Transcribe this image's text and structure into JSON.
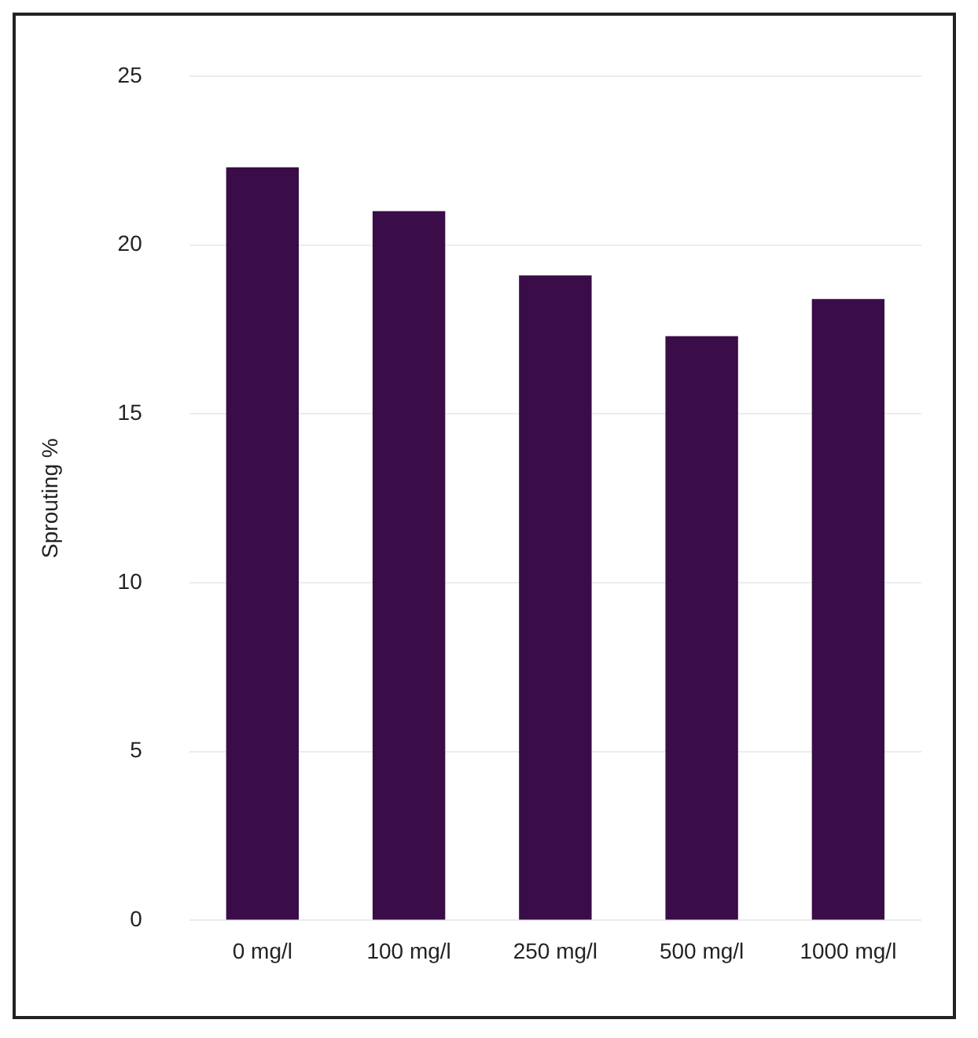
{
  "chart_data": {
    "type": "bar",
    "ylabel": "Sprouting %",
    "categories": [
      "0 mg/l",
      "100 mg/l",
      "250 mg/l",
      "500 mg/l",
      "1000 mg/l"
    ],
    "values": [
      22.3,
      21.0,
      19.1,
      17.3,
      18.4
    ],
    "color": "#3a0c48",
    "ylim": [
      0,
      25
    ],
    "yticks": [
      0,
      5,
      10,
      15,
      20,
      25
    ],
    "grid": "y"
  }
}
